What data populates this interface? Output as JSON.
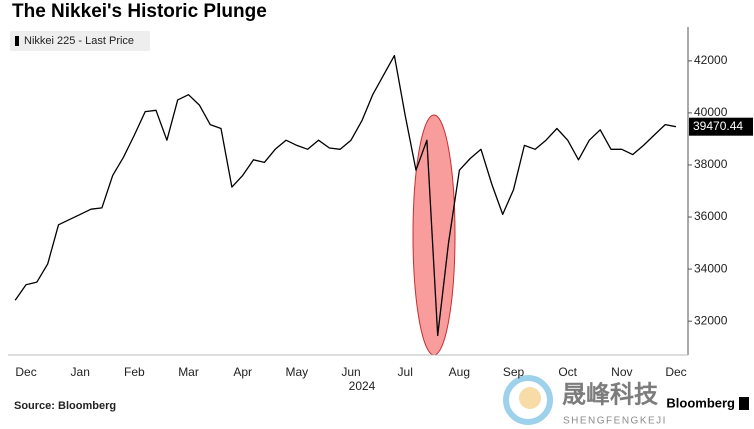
{
  "chart_data": {
    "type": "line",
    "title": "The Nikkei's Historic Plunge",
    "x_axis_label": "2024",
    "source": "Source: Bloomberg",
    "brand": "Bloomberg",
    "watermark": {
      "text": "晟峰科技",
      "subtext": "SHENGFENGKEJI"
    },
    "categories": [
      null,
      "Dec",
      null,
      null,
      null,
      null,
      "Jan",
      null,
      null,
      null,
      null,
      "Feb",
      null,
      null,
      null,
      null,
      "Mar",
      null,
      null,
      null,
      null,
      "Apr",
      null,
      null,
      null,
      null,
      "May",
      null,
      null,
      null,
      null,
      "Jun",
      null,
      null,
      null,
      null,
      "Jul",
      null,
      null,
      null,
      null,
      "Aug",
      null,
      null,
      null,
      null,
      "Sep",
      null,
      null,
      null,
      null,
      "Oct",
      null,
      null,
      null,
      null,
      "Nov",
      null,
      null,
      null,
      null,
      "Dec"
    ],
    "series": [
      {
        "name": "Nikkei 225 - Last Price",
        "color": "#000000",
        "values": [
          32800,
          33400,
          33500,
          34200,
          35700,
          35900,
          36100,
          36300,
          36350,
          37600,
          38300,
          39150,
          40050,
          40100,
          38950,
          40500,
          40700,
          40300,
          39550,
          39400,
          37150,
          37600,
          38200,
          38100,
          38600,
          38950,
          38750,
          38600,
          38950,
          38650,
          38600,
          38950,
          39700,
          40700,
          41450,
          42200,
          39900,
          37800,
          38950,
          31450,
          35000,
          37800,
          38250,
          38600,
          37250,
          36100,
          37050,
          38750,
          38600,
          38950,
          39400,
          38950,
          38200,
          38950,
          39350,
          38600,
          38600,
          38400,
          38750,
          39150,
          39550,
          39470.44
        ]
      }
    ],
    "ylim": [
      30700,
      43300
    ],
    "yticks": [
      32000,
      34000,
      36000,
      38000,
      40000,
      42000
    ],
    "grid": false,
    "legend": "top-left"
  }
}
